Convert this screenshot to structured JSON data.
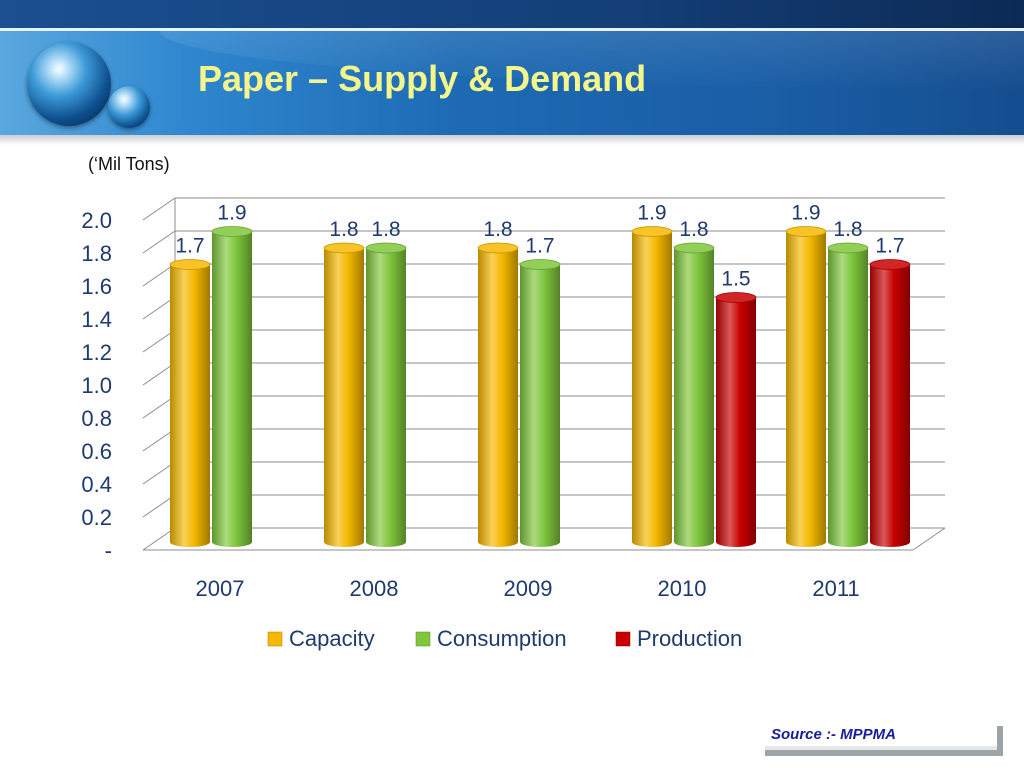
{
  "slide": {
    "title": "Paper – Supply & Demand",
    "unit_label": "(‘Mil Tons)",
    "source": "Source :- MPPMA"
  },
  "chart_data": {
    "type": "bar",
    "categories": [
      "2007",
      "2008",
      "2009",
      "2010",
      "2011"
    ],
    "series": [
      {
        "name": "Capacity",
        "color": "#f5b800",
        "values": [
          1.7,
          1.8,
          1.8,
          1.9,
          1.9
        ],
        "labels": [
          "1.7",
          "1.8",
          "1.8",
          "1.9",
          "1.9"
        ]
      },
      {
        "name": "Consumption",
        "color": "#7fc63c",
        "values": [
          1.9,
          1.8,
          1.7,
          1.8,
          1.8
        ],
        "labels": [
          "1.9",
          "1.8",
          "1.7",
          "1.8",
          "1.8"
        ]
      },
      {
        "name": "Production",
        "color": "#c80000",
        "values": [
          null,
          null,
          null,
          1.5,
          1.7
        ],
        "labels": [
          null,
          null,
          null,
          "1.5",
          "1.7"
        ]
      }
    ],
    "yticks": [
      "-",
      "0.2",
      "0.4",
      "0.6",
      "0.8",
      "1.0",
      "1.2",
      "1.4",
      "1.6",
      "1.8",
      "2.0"
    ],
    "ylim": [
      0,
      2.0
    ],
    "grid": true,
    "legend_position": "bottom",
    "style": "3d-cylinder"
  }
}
